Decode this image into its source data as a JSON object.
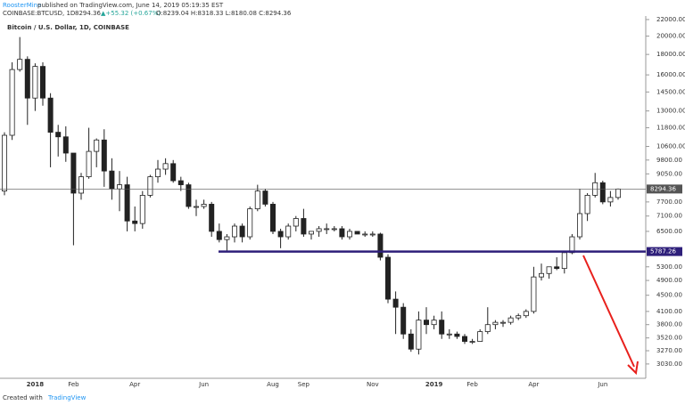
{
  "header": {
    "author": "RoosterMine",
    "published": "published on TradingView.com, June 14, 2019 05:19:35 EST",
    "symbol": "COINBASE:BTCUSD, 1D",
    "last": "8294.36",
    "change": "▲+55.32 (+0.67%)",
    "ohlc": "O:8239.04 H:8318.33 L:8180.08 C:8294.36"
  },
  "footer": {
    "prefix": "Created with",
    "brand": "TradingView"
  },
  "chart_data": {
    "type": "candlestick",
    "title": "Bitcoin / U.S. Dollar, 1D, COINBASE",
    "log_scale": true,
    "up_color": "#ffffff",
    "down_color": "#222222",
    "wick_color": "#222222",
    "categories": [
      null,
      null,
      null,
      null,
      "2018",
      null,
      null,
      null,
      null,
      "Feb",
      null,
      null,
      null,
      null,
      null,
      null,
      null,
      "Apr",
      null,
      null,
      null,
      null,
      null,
      null,
      null,
      null,
      "Jun",
      null,
      null,
      null,
      null,
      null,
      null,
      null,
      null,
      "Aug",
      null,
      null,
      null,
      "Sep",
      null,
      null,
      null,
      null,
      null,
      null,
      null,
      null,
      "Nov",
      null,
      null,
      null,
      null,
      null,
      null,
      null,
      "2019",
      null,
      null,
      null,
      null,
      "Feb",
      null,
      null,
      null,
      null,
      null,
      null,
      null,
      "Apr",
      null,
      null,
      null,
      null,
      null,
      null,
      null,
      null,
      "Jun",
      null,
      null
    ],
    "open": [
      8200,
      11300,
      16500,
      17500,
      14000,
      16800,
      14000,
      11500,
      11200,
      10200,
      8100,
      8900,
      10300,
      11000,
      9200,
      8300,
      8500,
      6900,
      6800,
      8000,
      8900,
      9300,
      9600,
      8700,
      8500,
      7500,
      7500,
      7600,
      6500,
      6200,
      6300,
      6700,
      6300,
      7400,
      8200,
      7600,
      6500,
      6300,
      6700,
      7000,
      6400,
      6500,
      6600,
      6600,
      6600,
      6300,
      6500,
      6400,
      6400,
      6400,
      5600,
      4400,
      4200,
      3600,
      3300,
      3900,
      3800,
      3900,
      3600,
      3600,
      3550,
      3450,
      3450,
      3650,
      3800,
      3850,
      3850,
      3950,
      4000,
      4100,
      5000,
      5100,
      5300,
      5250,
      5750,
      6300,
      7200,
      8000,
      8600,
      7700,
      7900
    ],
    "high": [
      11500,
      17200,
      19890,
      17800,
      17100,
      17200,
      14400,
      12000,
      11900,
      10200,
      9100,
      11800,
      11100,
      11700,
      9900,
      9200,
      8900,
      7500,
      8200,
      9000,
      9800,
      9900,
      9800,
      8900,
      8600,
      7800,
      7800,
      7700,
      6800,
      6400,
      6800,
      6800,
      7500,
      8500,
      8300,
      7700,
      6600,
      6800,
      7100,
      7400,
      6500,
      6700,
      6800,
      6700,
      6700,
      6600,
      6500,
      6500,
      6500,
      6450,
      5700,
      4600,
      4300,
      3700,
      4100,
      4200,
      4000,
      4100,
      3700,
      3650,
      3600,
      3500,
      3700,
      4200,
      3900,
      3900,
      4000,
      4050,
      4150,
      5300,
      5400,
      5300,
      5600,
      5800,
      6400,
      8300,
      8100,
      9100,
      8700,
      8200,
      8318.33
    ],
    "low": [
      8000,
      11000,
      16300,
      12000,
      13000,
      13400,
      9400,
      10000,
      9700,
      6000,
      7800,
      8800,
      9400,
      8400,
      7800,
      7300,
      6500,
      6500,
      6600,
      7900,
      8600,
      9000,
      8600,
      8200,
      7400,
      7100,
      7400,
      6300,
      6100,
      5800,
      6100,
      6100,
      6200,
      7300,
      7500,
      6400,
      5900,
      6200,
      6500,
      6300,
      6200,
      6300,
      6400,
      6500,
      6200,
      6200,
      6400,
      6300,
      6300,
      5500,
      4300,
      3600,
      3500,
      3250,
      3200,
      3600,
      3700,
      3500,
      3500,
      3500,
      3400,
      3400,
      3450,
      3600,
      3700,
      3750,
      3800,
      3900,
      3950,
      4050,
      4900,
      4950,
      5200,
      5100,
      5700,
      6200,
      6900,
      7900,
      7600,
      7500,
      7800
    ],
    "close": [
      11300,
      16500,
      17500,
      14000,
      16800,
      14000,
      11500,
      11200,
      10200,
      8100,
      8900,
      10300,
      11000,
      9200,
      8300,
      8500,
      6900,
      6800,
      8000,
      8900,
      9300,
      9600,
      8700,
      8500,
      7500,
      7500,
      7600,
      6500,
      6200,
      6300,
      6700,
      6300,
      7400,
      8200,
      7600,
      6500,
      6300,
      6700,
      7000,
      6400,
      6500,
      6600,
      6600,
      6600,
      6300,
      6500,
      6400,
      6400,
      6400,
      5600,
      4400,
      4200,
      3600,
      3300,
      3900,
      3800,
      3900,
      3600,
      3600,
      3550,
      3450,
      3450,
      3650,
      3800,
      3850,
      3850,
      3950,
      4000,
      4100,
      5000,
      5100,
      5300,
      5250,
      5750,
      6300,
      7200,
      8000,
      8600,
      7700,
      7900,
      8294.36
    ],
    "ylim": [
      2790,
      22800
    ],
    "yticks": [
      {
        "value": 3030,
        "label": "3030.00"
      },
      {
        "value": 3270,
        "label": "3270.00"
      },
      {
        "value": 3520,
        "label": "3520.00"
      },
      {
        "value": 3800,
        "label": "3800.00"
      },
      {
        "value": 4100,
        "label": "4100.00"
      },
      {
        "value": 4500,
        "label": "4500.00"
      },
      {
        "value": 4900,
        "label": "4900.00"
      },
      {
        "value": 5300,
        "label": "5300.00"
      },
      {
        "value": 6500,
        "label": "6500.00"
      },
      {
        "value": 7100,
        "label": "7100.00"
      },
      {
        "value": 7700,
        "label": "7700.00"
      },
      {
        "value": 9050,
        "label": "9050.00"
      },
      {
        "value": 9800,
        "label": "9800.00"
      },
      {
        "value": 10600,
        "label": "10600.00"
      },
      {
        "value": 11800,
        "label": "11800.00"
      },
      {
        "value": 13000,
        "label": "13000.00"
      },
      {
        "value": 14500,
        "label": "14500.00"
      },
      {
        "value": 16000,
        "label": "16000.00"
      },
      {
        "value": 18000,
        "label": "18000.00"
      },
      {
        "value": 20000,
        "label": "20000.00"
      },
      {
        "value": 22000,
        "label": "22000.00"
      }
    ],
    "price_line": {
      "value": 8294.36,
      "color": "#555555"
    },
    "support_line": {
      "value": 5787.26,
      "color": "#2e1f7a"
    }
  }
}
